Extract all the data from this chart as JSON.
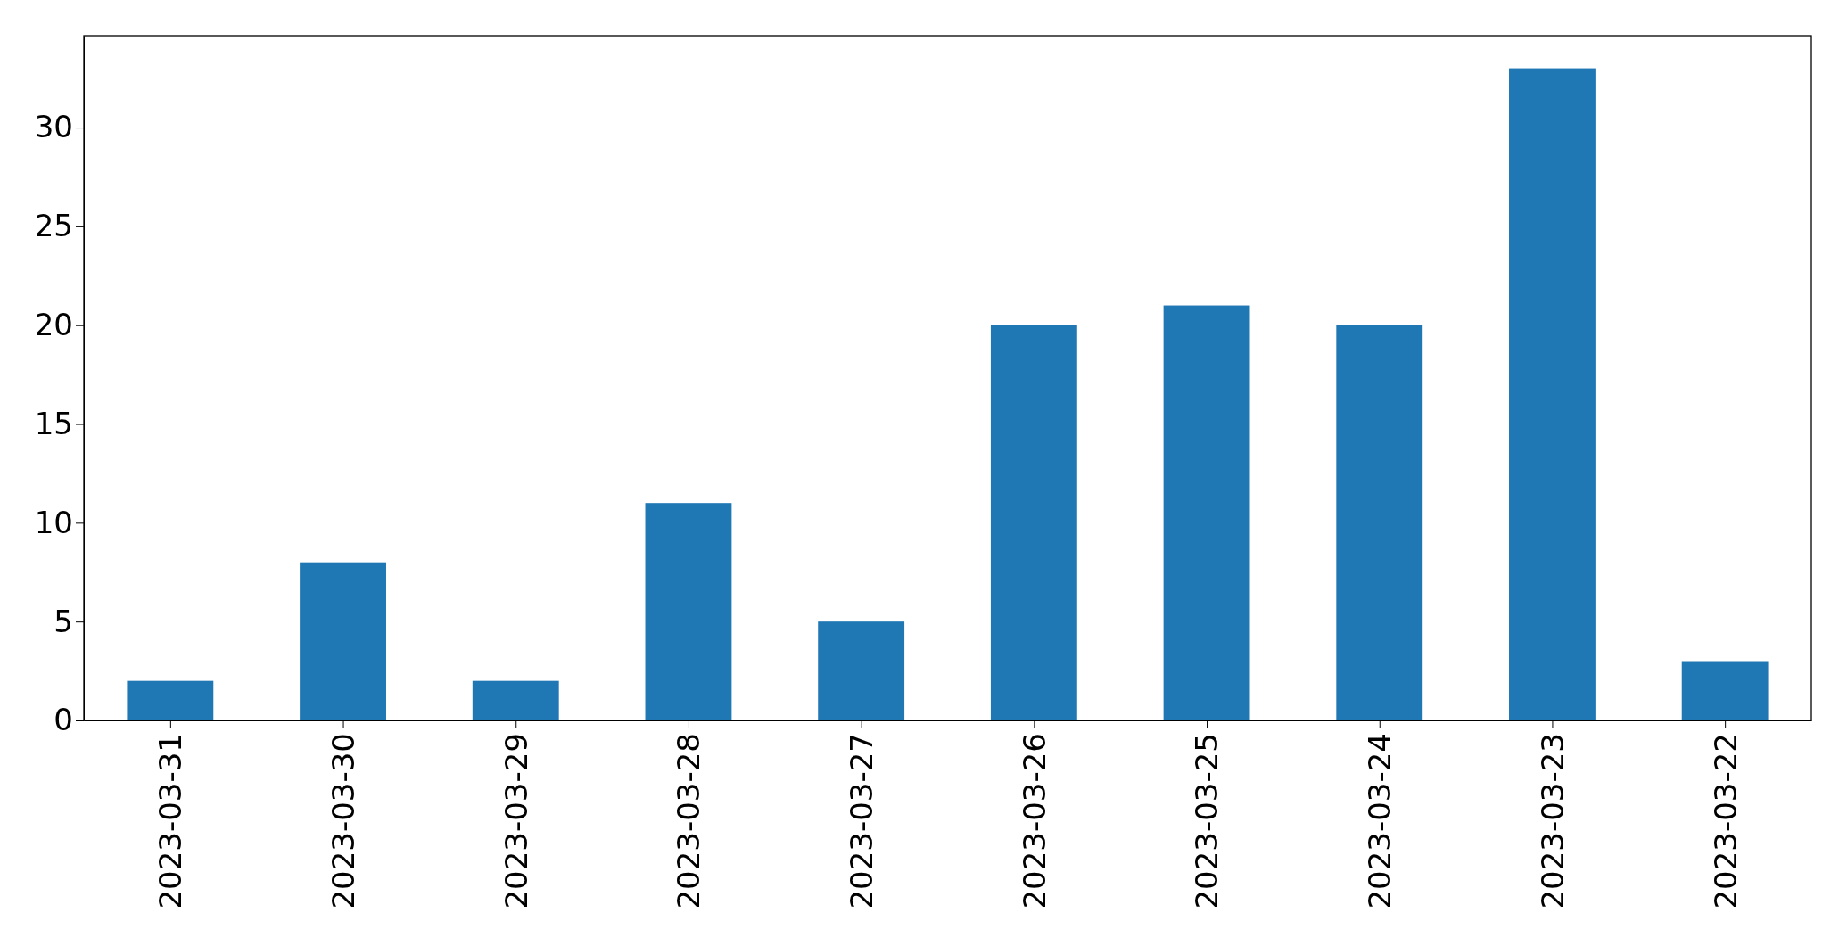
{
  "chart_data": {
    "type": "bar",
    "categories": [
      "2023-03-31",
      "2023-03-30",
      "2023-03-29",
      "2023-03-28",
      "2023-03-27",
      "2023-03-26",
      "2023-03-25",
      "2023-03-24",
      "2023-03-23",
      "2023-03-22"
    ],
    "values": [
      2,
      8,
      2,
      11,
      5,
      20,
      21,
      20,
      33,
      3
    ],
    "color": "#1f77b4",
    "ylim": [
      0,
      34.65
    ],
    "yticks": [
      0,
      5,
      10,
      15,
      20,
      25,
      30
    ]
  }
}
